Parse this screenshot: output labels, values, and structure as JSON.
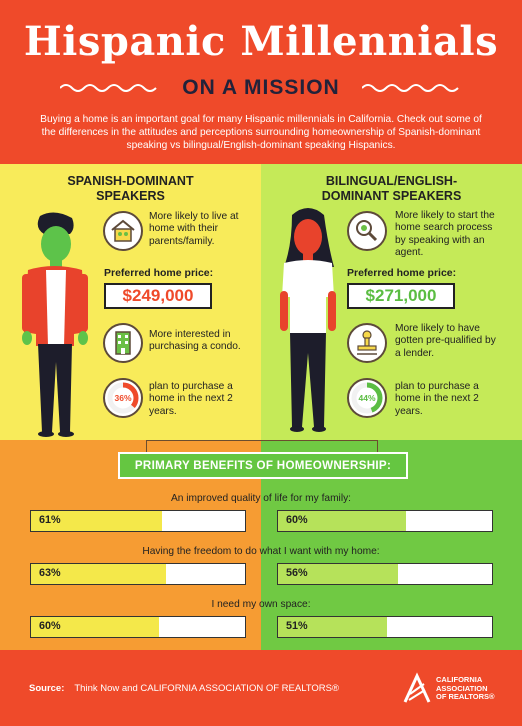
{
  "header": {
    "title": "Hispanic Millennials",
    "subtitle": "ON A MISSION",
    "intro": "Buying a home is an important goal for many Hispanic millennials in California. Check out some of the differences in the attitudes and perceptions surrounding homeownership of Spanish-dominant speaking vs bilingual/English-dominant speaking Hispanics."
  },
  "spanish": {
    "heading_line1": "SPANISH-DOMINANT",
    "heading_line2": "SPEAKERS",
    "fact1": "More likely to live at home with their parents/family.",
    "price_label": "Preferred home price:",
    "price": "$249,000",
    "fact2": "More interested in purchasing a condo.",
    "donut_value": "36%",
    "donut_fraction": 0.36,
    "fact3": "plan to purchase a home in the next 2 years."
  },
  "bilingual": {
    "heading_line1": "BILINGUAL/ENGLISH-",
    "heading_line2": "DOMINANT SPEAKERS",
    "fact1": "More likely to start the home search process by speaking with an agent.",
    "price_label": "Preferred home price:",
    "price": "$271,000",
    "fact2": "More likely to have gotten pre-qualified by a lender.",
    "donut_value": "44%",
    "donut_fraction": 0.44,
    "fact3": "plan to purchase a home in the next 2 years."
  },
  "benefits": {
    "title": "PRIMARY BENEFITS OF HOMEOWNERSHIP:",
    "items": [
      {
        "label": "An improved quality of life for my family:",
        "spanish": "61%",
        "spanish_fraction": 0.61,
        "bilingual": "60%",
        "bilingual_fraction": 0.6
      },
      {
        "label": "Having the freedom to do what I want with my home:",
        "spanish": "63%",
        "spanish_fraction": 0.63,
        "bilingual": "56%",
        "bilingual_fraction": 0.56
      },
      {
        "label": "I need my own space:",
        "spanish": "60%",
        "spanish_fraction": 0.6,
        "bilingual": "51%",
        "bilingual_fraction": 0.51
      }
    ]
  },
  "footer": {
    "source_label": "Source:",
    "source_text": "Think Now and CALIFORNIA ASSOCIATION OF REALTORS®",
    "logo_line1": "CALIFORNIA",
    "logo_line2": "ASSOCIATION",
    "logo_line3": "OF REALTORS®"
  },
  "colors": {
    "red": "#ef4a2a",
    "yellow": "#f8eb5a",
    "light_green": "#c5ea58",
    "orange": "#f69c33",
    "green": "#70c943",
    "price_red": "#ef4a2a",
    "price_green": "#5bbd42",
    "bar_yellow": "#f4e84a",
    "bar_green": "#b6e25a"
  }
}
